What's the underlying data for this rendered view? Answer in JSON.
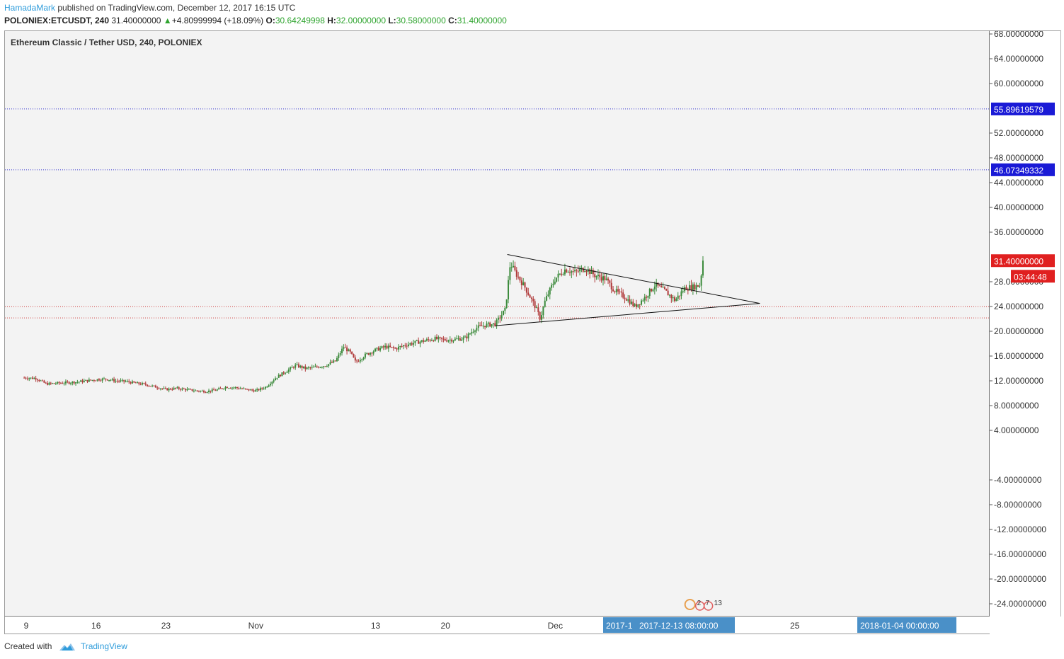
{
  "header": {
    "author": "HamadaMark",
    "published_text": "published on TradingView.com, December 12, 2017 16:15 UTC",
    "symbol": "POLONIEX:ETCUSDT, 240",
    "last": "31.40000000",
    "change_arrow": "▲",
    "change": "+4.80999994 (+18.09%)",
    "o_label": "O:",
    "o_value": "30.64249998",
    "h_label": "H:",
    "h_value": "32.00000000",
    "l_label": "L:",
    "l_value": "30.58000000",
    "c_label": "C:",
    "c_value": "31.40000000"
  },
  "chart_data": {
    "type": "candlestick",
    "title": "Ethereum Classic / Tether USD, 240, POLONIEX",
    "y_ticks": [
      "68.00000000",
      "64.00000000",
      "60.00000000",
      "52.00000000",
      "48.00000000",
      "44.00000000",
      "40.00000000",
      "36.00000000",
      "28.00000000",
      "24.00000000",
      "20.00000000",
      "16.00000000",
      "12.00000000",
      "8.00000000",
      "4.00000000",
      "-4.00000000",
      "-8.00000000",
      "-12.00000000",
      "-16.00000000",
      "-20.00000000",
      "-24.00000000"
    ],
    "y_tick_values": [
      68,
      64,
      60,
      52,
      48,
      44,
      40,
      36,
      28,
      24,
      20,
      16,
      12,
      8,
      4,
      -4,
      -8,
      -12,
      -16,
      -20,
      -24
    ],
    "x_ticks": [
      "9",
      "16",
      "23",
      "Nov",
      "13",
      "20",
      "Dec",
      "25"
    ],
    "x_tick_days": [
      0,
      7,
      14,
      23,
      35,
      42,
      53,
      77
    ],
    "ylim": [
      -26,
      70
    ],
    "price_path": [
      [
        -0.2,
        12.5
      ],
      [
        1,
        12.4
      ],
      [
        2,
        11.5
      ],
      [
        3,
        11.6
      ],
      [
        4,
        11.7
      ],
      [
        5,
        11.8
      ],
      [
        6,
        12.0
      ],
      [
        7,
        12.2
      ],
      [
        8,
        12.3
      ],
      [
        9,
        12.0
      ],
      [
        10,
        11.9
      ],
      [
        11,
        11.6
      ],
      [
        12,
        11.4
      ],
      [
        13,
        11.0
      ],
      [
        14,
        10.6
      ],
      [
        15,
        10.8
      ],
      [
        16,
        10.6
      ],
      [
        17,
        10.4
      ],
      [
        18,
        10.3
      ],
      [
        19,
        10.5
      ],
      [
        20,
        11.0
      ],
      [
        21,
        10.9
      ],
      [
        22,
        10.6
      ],
      [
        23,
        10.4
      ],
      [
        24,
        11.0
      ],
      [
        25,
        12.5
      ],
      [
        26,
        13.5
      ],
      [
        27,
        14.5
      ],
      [
        28,
        14.0
      ],
      [
        29,
        14.2
      ],
      [
        30,
        14.5
      ],
      [
        31,
        15.2
      ],
      [
        31.8,
        17.5
      ],
      [
        32.5,
        16.5
      ],
      [
        33,
        15.0
      ],
      [
        34,
        16.2
      ],
      [
        35,
        17.0
      ],
      [
        36,
        17.5
      ],
      [
        37,
        17.2
      ],
      [
        38,
        17.8
      ],
      [
        39,
        18.2
      ],
      [
        40,
        18.5
      ],
      [
        41,
        18.8
      ],
      [
        42,
        18.6
      ],
      [
        43,
        18.7
      ],
      [
        44,
        18.9
      ],
      [
        45,
        20.5
      ],
      [
        46,
        21.0
      ],
      [
        47,
        21.2
      ],
      [
        48,
        23.5
      ],
      [
        48.5,
        31.0
      ],
      [
        49,
        29.5
      ],
      [
        50,
        27.0
      ],
      [
        51,
        24.0
      ],
      [
        51.5,
        22.0
      ],
      [
        52,
        25.0
      ],
      [
        53,
        28.5
      ],
      [
        54,
        30.0
      ],
      [
        55,
        29.5
      ],
      [
        56,
        30.2
      ],
      [
        57,
        29.0
      ],
      [
        58,
        28.5
      ],
      [
        59,
        26.5
      ],
      [
        60,
        25.5
      ],
      [
        61,
        24.0
      ],
      [
        62,
        25.5
      ],
      [
        63,
        27.5
      ],
      [
        64,
        26.5
      ],
      [
        65,
        25.0
      ],
      [
        66,
        27.0
      ],
      [
        67,
        27.2
      ],
      [
        67.5,
        27.5
      ],
      [
        67.8,
        31.4
      ]
    ],
    "horizontal_levels": [
      {
        "value": 55.89619579,
        "label": "55.89619579",
        "color": "#1010d0",
        "style": "dotted",
        "line_color": "#3a3ad0"
      },
      {
        "value": 46.07349332,
        "label": "46.07349332",
        "color": "#1010d0",
        "style": "dotted",
        "line_color": "#3a3ad0"
      },
      {
        "value": 23.97,
        "label": "",
        "color": "#d03030",
        "style": "dotted",
        "line_color": "#d04040"
      },
      {
        "value": 22.16,
        "label": "",
        "color": "#d03030",
        "style": "dotted",
        "line_color": "#d04040"
      }
    ],
    "trendlines": [
      {
        "from": [
          48.2,
          32.4
        ],
        "to": [
          73.5,
          24.5
        ]
      },
      {
        "from": [
          47.0,
          20.9
        ],
        "to": [
          73.5,
          24.5
        ]
      }
    ],
    "last_price_label": "31.40000000",
    "countdown_label": "03:44:48",
    "crosshair_date_label": "2017-12-13 08:00:00",
    "crosshair_date_prefix": "2017-1",
    "future_date_label": "2018-01-04 00:00:00",
    "event_markers": [
      "2",
      "7",
      "13"
    ],
    "colors": {
      "up": "#3b8a3b",
      "down": "#b03a3a",
      "label_blue": "#1a1ad6",
      "label_red": "#e02020",
      "date_label": "#4a90c8"
    },
    "grid": false
  },
  "footer": {
    "created_with": "Created with",
    "brand": "TradingView"
  }
}
